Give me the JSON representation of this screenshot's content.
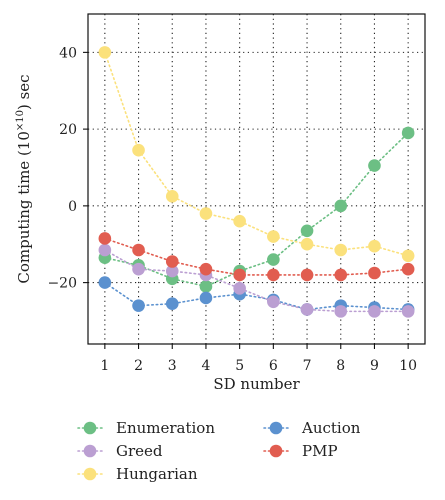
{
  "chart_data": {
    "type": "scatter",
    "xlabel": "SD number",
    "ylabel_main": "Computing time (10",
    "ylabel_sup": "×10",
    "ylabel_end": ") sec",
    "xlim": [
      0.5,
      10.5
    ],
    "ylim": [
      -36,
      50
    ],
    "x": [
      1,
      2,
      3,
      4,
      5,
      6,
      7,
      8,
      9,
      10
    ],
    "xticks": [
      "1",
      "2",
      "3",
      "4",
      "5",
      "6",
      "7",
      "8",
      "9",
      "10"
    ],
    "yticks": [
      {
        "value": 40,
        "label": "40"
      },
      {
        "value": 20,
        "label": "20"
      },
      {
        "value": 0,
        "label": "0"
      },
      {
        "value": -20,
        "label": "−20"
      }
    ],
    "grid": true,
    "legend_position": "bottom",
    "series": [
      {
        "name": "Enumeration",
        "color": "#6cbf84",
        "values": [
          -13.5,
          -15.5,
          -19,
          -21,
          -17,
          -14,
          -6.5,
          0,
          10.5,
          19
        ]
      },
      {
        "name": "Auction",
        "color": "#5b91cf",
        "values": [
          -20,
          -26,
          -25.5,
          -24,
          -23,
          -24.5,
          -27,
          -26,
          -26.5,
          -27
        ]
      },
      {
        "name": "Greed",
        "color": "#bb9fd2",
        "values": [
          -11.5,
          -16.5,
          -17,
          -18,
          -21.5,
          -25,
          -27,
          -27.5,
          -27.5,
          -27.5
        ]
      },
      {
        "name": "PMP",
        "color": "#e15d50",
        "values": [
          -8.5,
          -11.5,
          -14.5,
          -16.5,
          -18,
          -18,
          -18,
          -18,
          -17.5,
          -16.5
        ]
      },
      {
        "name": "Hungarian",
        "color": "#fbe17c",
        "values": [
          40,
          14.5,
          2.5,
          -2,
          -4,
          -8,
          -10,
          -11.5,
          -10.5,
          -13
        ]
      }
    ]
  }
}
